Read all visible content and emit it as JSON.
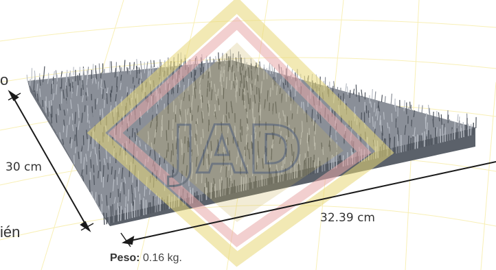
{
  "product": {
    "dimension_width": "30 cm",
    "dimension_length": "32.39 cm",
    "weight_label": "Peso:",
    "weight_value": "0.16 kg.",
    "cropped_text_top": "o",
    "cropped_text_bottom": "ién"
  },
  "watermark": {
    "text": "JAD",
    "colors": [
      "#e8d878",
      "#e8a8a8",
      "#c9b35a"
    ]
  },
  "colors": {
    "mat_base": "#8a8f98",
    "mat_dark": "#4d535c",
    "mat_light": "#b9bec6",
    "guide_lines": "#f3e37a",
    "dimension_lines": "#1a1a1a"
  }
}
